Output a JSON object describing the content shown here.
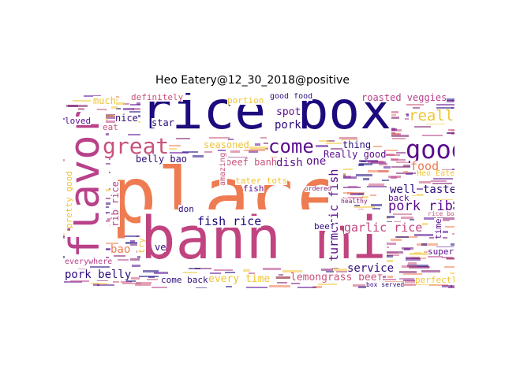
{
  "title": "Heo Eatery@12_30_2018@positive",
  "colors": {
    "dark_purple": "#1c0a7e",
    "purple": "#5a0d8f",
    "magenta": "#b8418a",
    "pink": "#c9537a",
    "orange": "#ee7b51",
    "yellow": "#f0c435",
    "dark_red": "#7d1a6e"
  },
  "words": [
    {
      "text": "place",
      "color": "#ee7b51"
    },
    {
      "text": "rice box",
      "color": "#1c0a7e"
    },
    {
      "text": "banh mi",
      "color": "#c0447f"
    },
    {
      "text": "flavor",
      "color": "#b8418a"
    },
    {
      "text": "great",
      "color": "#c9537a"
    },
    {
      "text": "good",
      "color": "#5a0d8f"
    },
    {
      "text": "come",
      "color": "#5a0d8f"
    },
    {
      "text": "pork belly",
      "color": "#2c0b7a"
    },
    {
      "text": "lemongrass beef",
      "color": "#c9537a"
    },
    {
      "text": "fish rice",
      "color": "#1c0a7e"
    },
    {
      "text": "garlic rice",
      "color": "#c0447f"
    },
    {
      "text": "pork rib",
      "color": "#5a0d8f"
    },
    {
      "text": "turmeric fish",
      "color": "#5a0d8f"
    },
    {
      "text": "every time",
      "color": "#f0c435"
    },
    {
      "text": "really",
      "color": "#f0c435"
    },
    {
      "text": "food",
      "color": "#ee7b51"
    },
    {
      "text": "well",
      "color": "#2c0b7a"
    },
    {
      "text": "taste",
      "color": "#2c0b7a"
    },
    {
      "text": "service",
      "color": "#2c0b7a"
    },
    {
      "text": "beef banh",
      "color": "#c9537a"
    },
    {
      "text": "dish",
      "color": "#5a0d8f"
    },
    {
      "text": "one",
      "color": "#5a0d8f"
    },
    {
      "text": "Really good",
      "color": "#5a0d8f"
    },
    {
      "text": "belly bao",
      "color": "#2c0b7a"
    },
    {
      "text": "seasoned",
      "color": "#f0c435"
    },
    {
      "text": "pork",
      "color": "#2c0b7a"
    },
    {
      "text": "roasted veggies",
      "color": "#b8418a"
    },
    {
      "text": "much",
      "color": "#f0c435"
    },
    {
      "text": "nice",
      "color": "#2c0b7a"
    },
    {
      "text": "star",
      "color": "#2c0b7a"
    },
    {
      "text": "eat",
      "color": "#c9537a"
    },
    {
      "text": "loved",
      "color": "#5a0d8f"
    },
    {
      "text": "definitely",
      "color": "#c9537a"
    },
    {
      "text": "portion",
      "color": "#f0c435"
    },
    {
      "text": "good food",
      "color": "#2c0b7a"
    },
    {
      "text": "spot",
      "color": "#5a0d8f"
    },
    {
      "text": "thing",
      "color": "#2c0b7a"
    },
    {
      "text": "bao",
      "color": "#ee7b51"
    },
    {
      "text": "come back",
      "color": "#2c0b7a"
    },
    {
      "text": "perfectly",
      "color": "#f0c435"
    },
    {
      "text": "super",
      "color": "#5a0d8f"
    },
    {
      "text": "time",
      "color": "#5a0d8f"
    },
    {
      "text": "back",
      "color": "#5a0d8f"
    },
    {
      "text": "pretty good",
      "color": "#f0c435"
    },
    {
      "text": "rib rice",
      "color": "#b8418a"
    },
    {
      "text": "amazing",
      "color": "#c9537a"
    },
    {
      "text": "fish",
      "color": "#5a0d8f"
    },
    {
      "text": "don",
      "color": "#2c0b7a"
    },
    {
      "text": "beef",
      "color": "#2c0b7a"
    },
    {
      "text": "try",
      "color": "#f0c435"
    },
    {
      "text": "ve",
      "color": "#2c0b7a"
    },
    {
      "text": "tater tots",
      "color": "#f0c435"
    },
    {
      "text": "Heo Eater",
      "color": "#f0c435"
    },
    {
      "text": "everywhere",
      "color": "#b8418a"
    },
    {
      "text": "ordered",
      "color": "#7d1a6e"
    },
    {
      "text": "healthy",
      "color": "#7d1a6e"
    },
    {
      "text": "rice box",
      "color": "#c9537a"
    },
    {
      "text": "box served",
      "color": "#2c0b7a"
    }
  ]
}
